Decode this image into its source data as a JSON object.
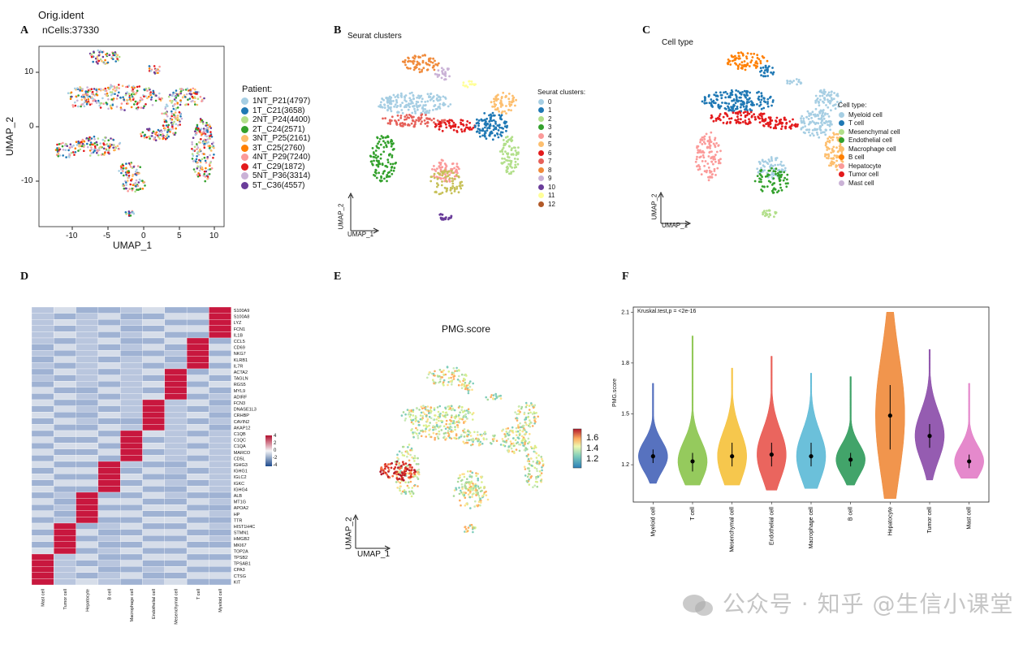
{
  "panels": {
    "A": {
      "letter": "A",
      "title": "Orig.ident",
      "subtitle": "nCells:37330",
      "xlabel": "UMAP_1",
      "ylabel": "UMAP_2",
      "xticks": [
        "-10",
        "-5",
        "0",
        "5",
        "10"
      ],
      "yticks": [
        "10",
        "0",
        "-10"
      ],
      "legend_title": "Patient:",
      "legend": [
        {
          "label": "1NT_P21(4797)",
          "color": "#a6cee3"
        },
        {
          "label": "1T_C21(3658)",
          "color": "#1f78b4"
        },
        {
          "label": "2NT_P24(4400)",
          "color": "#b2df8a"
        },
        {
          "label": "2T_C24(2571)",
          "color": "#33a02c"
        },
        {
          "label": "3NT_P25(2161)",
          "color": "#fdbf6f"
        },
        {
          "label": "3T_C25(2760)",
          "color": "#ff7f00"
        },
        {
          "label": "4NT_P29(7240)",
          "color": "#fb9a99"
        },
        {
          "label": "4T_C29(1872)",
          "color": "#e31a1c"
        },
        {
          "label": "5NT_P36(3314)",
          "color": "#cab2d6"
        },
        {
          "label": "5T_C36(4557)",
          "color": "#6a3d9a"
        }
      ]
    },
    "B": {
      "letter": "B",
      "title": "Seurat clusters",
      "legend_title": "Seurat clusters:",
      "xlabel": "UMAP_1",
      "ylabel": "UMAP_2",
      "legend": [
        {
          "label": "0",
          "color": "#a6cee3"
        },
        {
          "label": "1",
          "color": "#1f78b4"
        },
        {
          "label": "2",
          "color": "#b2df8a"
        },
        {
          "label": "3",
          "color": "#33a02c"
        },
        {
          "label": "4",
          "color": "#fb9a99"
        },
        {
          "label": "5",
          "color": "#fdbf6f"
        },
        {
          "label": "6",
          "color": "#e31a1c"
        },
        {
          "label": "7",
          "color": "#e6615a"
        },
        {
          "label": "8",
          "color": "#f08a3a"
        },
        {
          "label": "9",
          "color": "#cab2d6"
        },
        {
          "label": "10",
          "color": "#6a3d9a"
        },
        {
          "label": "11",
          "color": "#ffff99"
        },
        {
          "label": "12",
          "color": "#b15928"
        }
      ]
    },
    "C": {
      "letter": "C",
      "title": "Cell type",
      "legend_title": "Cell type:",
      "xlabel": "UMAP_1",
      "ylabel": "UMAP_2",
      "legend": [
        {
          "label": "Myeloid cell",
          "color": "#a6cee3"
        },
        {
          "label": "T cell",
          "color": "#1f78b4"
        },
        {
          "label": "Mesenchymal cell",
          "color": "#b2df8a"
        },
        {
          "label": "Endothelial cell",
          "color": "#33a02c"
        },
        {
          "label": "Macrophage cell",
          "color": "#fdbf6f"
        },
        {
          "label": "B cell",
          "color": "#ff7f00"
        },
        {
          "label": "Hepatocyte",
          "color": "#fb9a99"
        },
        {
          "label": "Tumor cell",
          "color": "#e31a1c"
        },
        {
          "label": "Mast cell",
          "color": "#cab2d6"
        }
      ]
    },
    "D": {
      "letter": "D",
      "scale_ticks": [
        "4",
        "2",
        "0",
        "-2",
        "-4"
      ]
    },
    "E": {
      "letter": "E",
      "title": "PMG.score",
      "xlabel": "UMAP_1",
      "ylabel": "UMAP_2",
      "scale_ticks": [
        "1.6",
        "1.4",
        "1.2"
      ]
    },
    "F": {
      "letter": "F",
      "annotation": "Kruskal.test,p = <2e-16",
      "ylabel": "PMG.score"
    }
  },
  "watermark": "公众号 · 知乎 @生信小课堂",
  "chart_data": [
    {
      "type": "scatter",
      "panel": "A",
      "title": "Orig.ident",
      "subtitle": "nCells:37330",
      "xlabel": "UMAP_1",
      "ylabel": "UMAP_2",
      "xlim": [
        -14,
        12
      ],
      "ylim": [
        -17,
        15
      ],
      "series_legend": [
        "1NT_P21(4797)",
        "1T_C21(3658)",
        "2NT_P24(4400)",
        "2T_C24(2571)",
        "3NT_P25(2161)",
        "3T_C25(2760)",
        "4NT_P29(7240)",
        "4T_C29(1872)",
        "5NT_P36(3314)",
        "5T_C36(4557)"
      ]
    },
    {
      "type": "scatter",
      "panel": "B",
      "title": "Seurat clusters",
      "series_legend": [
        "0",
        "1",
        "2",
        "3",
        "4",
        "5",
        "6",
        "7",
        "8",
        "9",
        "10",
        "11",
        "12"
      ]
    },
    {
      "type": "scatter",
      "panel": "C",
      "title": "Cell type",
      "series_legend": [
        "Myeloid cell",
        "T cell",
        "Mesenchymal cell",
        "Endothelial cell",
        "Macrophage cell",
        "B cell",
        "Hepatocyte",
        "Tumor cell",
        "Mast cell"
      ]
    },
    {
      "type": "heatmap",
      "panel": "D",
      "columns": [
        "Mast cell",
        "Tumor cell",
        "Hepatocyte",
        "B cell",
        "Macrophage cell",
        "Endothelial cell",
        "Mesenchymal cell",
        "T cell",
        "Myeloid cell"
      ],
      "rows": [
        "S100A9",
        "S100A8",
        "LYZ",
        "FCN1",
        "IL1B",
        "CCL5",
        "CD69",
        "NKG7",
        "KLRB1",
        "IL7R",
        "ACTA2",
        "TAGLN",
        "RGS5",
        "MYL9",
        "ADIRF",
        "FCN3",
        "DNASE1L3",
        "CRHBP",
        "CAVIN2",
        "AKAP12",
        "C1QB",
        "C1QC",
        "C1QA",
        "MARCO",
        "CD5L",
        "IGHG3",
        "IGHG1",
        "IGLC2",
        "IGKC",
        "IGHG4",
        "ALB",
        "MT1G",
        "APOA2",
        "HP",
        "TTR",
        "HIST1H4C",
        "STMN1",
        "HMGB2",
        "MKI67",
        "TOP2A",
        "TPSB2",
        "TPSAB1",
        "CPA3",
        "CTSG",
        "KIT"
      ],
      "high_column_for_row_group": [
        8,
        8,
        8,
        8,
        8,
        7,
        7,
        7,
        7,
        7,
        6,
        6,
        6,
        6,
        6,
        5,
        5,
        5,
        5,
        5,
        4,
        4,
        4,
        4,
        4,
        3,
        3,
        3,
        3,
        3,
        2,
        2,
        2,
        2,
        2,
        1,
        1,
        1,
        1,
        1,
        0,
        0,
        0,
        0,
        0
      ],
      "color_range": [
        -4,
        4
      ]
    },
    {
      "type": "scatter",
      "panel": "E",
      "title": "PMG.score",
      "color_range": [
        1.1,
        1.7
      ]
    },
    {
      "type": "violin",
      "panel": "F",
      "ylabel": "PMG.score",
      "annotation": "Kruskal.test,p = <2e-16",
      "categories": [
        "Myeloid cell",
        "T cell",
        "Mesenchymal cell",
        "Endothelial cell",
        "Macrophage cell",
        "B cell",
        "Hepatocyte",
        "Tumor cell",
        "Mast cell"
      ],
      "colors": [
        "#4563b8",
        "#8ac44b",
        "#f5c13a",
        "#e8544c",
        "#5bb9d6",
        "#2e9a5a",
        "#f08a3a",
        "#8a4aa8",
        "#e27cc6"
      ],
      "median": [
        1.25,
        1.22,
        1.25,
        1.26,
        1.25,
        1.23,
        1.49,
        1.37,
        1.22
      ],
      "q1": [
        1.21,
        1.16,
        1.19,
        1.19,
        1.19,
        1.19,
        1.29,
        1.3,
        1.18
      ],
      "q3": [
        1.29,
        1.27,
        1.33,
        1.33,
        1.33,
        1.27,
        1.67,
        1.44,
        1.26
      ],
      "min": [
        1.09,
        1.08,
        1.08,
        1.05,
        1.06,
        1.08,
        1.0,
        1.11,
        1.12
      ],
      "max": [
        1.68,
        1.96,
        1.77,
        1.84,
        1.74,
        1.72,
        2.1,
        1.88,
        1.68
      ],
      "yticks": [
        1.2,
        1.5,
        1.8,
        2.1
      ],
      "ylim": [
        0.98,
        2.13
      ]
    }
  ]
}
